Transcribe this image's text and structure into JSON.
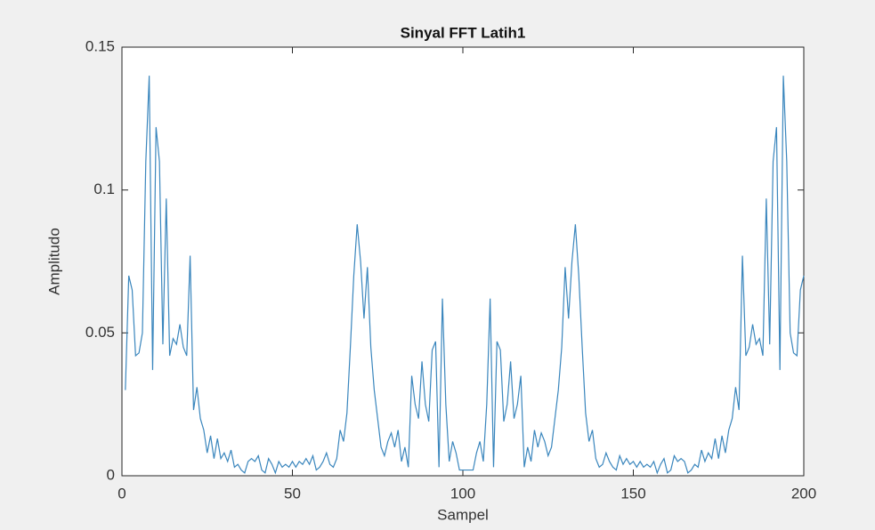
{
  "chart_data": {
    "type": "line",
    "title": "Sinyal FFT Latih1",
    "xlabel": "Sampel",
    "ylabel": "Amplitudo",
    "x": [
      1,
      2,
      3,
      4,
      5,
      6,
      7,
      8,
      9,
      10,
      11,
      12,
      13,
      14,
      15,
      16,
      17,
      18,
      19,
      20,
      21,
      22,
      23,
      24,
      25,
      26,
      27,
      28,
      29,
      30,
      31,
      32,
      33,
      34,
      35,
      36,
      37,
      38,
      39,
      40,
      41,
      42,
      43,
      44,
      45,
      46,
      47,
      48,
      49,
      50,
      51,
      52,
      53,
      54,
      55,
      56,
      57,
      58,
      59,
      60,
      61,
      62,
      63,
      64,
      65,
      66,
      67,
      68,
      69,
      70,
      71,
      72,
      73,
      74,
      75,
      76,
      77,
      78,
      79,
      80,
      81,
      82,
      83,
      84,
      85,
      86,
      87,
      88,
      89,
      90,
      91,
      92,
      93,
      94,
      95,
      96,
      97,
      98,
      99,
      100,
      101,
      102,
      103,
      104,
      105,
      106,
      107,
      108,
      109,
      110,
      111,
      112,
      113,
      114,
      115,
      116,
      117,
      118,
      119,
      120,
      121,
      122,
      123,
      124,
      125,
      126,
      127,
      128,
      129,
      130,
      131,
      132,
      133,
      134,
      135,
      136,
      137,
      138,
      139,
      140,
      141,
      142,
      143,
      144,
      145,
      146,
      147,
      148,
      149,
      150,
      151,
      152,
      153,
      154,
      155,
      156,
      157,
      158,
      159,
      160,
      161,
      162,
      163,
      164,
      165,
      166,
      167,
      168,
      169,
      170,
      171,
      172,
      173,
      174,
      175,
      176,
      177,
      178,
      179,
      180,
      181,
      182,
      183,
      184,
      185,
      186,
      187,
      188,
      189,
      190,
      191,
      192,
      193,
      194,
      195,
      196,
      197,
      198,
      199,
      200
    ],
    "series": [
      {
        "color": "#3a86bd",
        "values": [
          0.03,
          0.07,
          0.065,
          0.042,
          0.043,
          0.05,
          0.11,
          0.14,
          0.037,
          0.122,
          0.11,
          0.046,
          0.097,
          0.042,
          0.048,
          0.046,
          0.053,
          0.045,
          0.042,
          0.077,
          0.023,
          0.031,
          0.02,
          0.016,
          0.008,
          0.014,
          0.006,
          0.013,
          0.006,
          0.008,
          0.005,
          0.009,
          0.003,
          0.004,
          0.002,
          0.001,
          0.005,
          0.006,
          0.005,
          0.007,
          0.002,
          0.001,
          0.006,
          0.004,
          0.001,
          0.005,
          0.003,
          0.004,
          0.003,
          0.005,
          0.003,
          0.005,
          0.004,
          0.006,
          0.004,
          0.007,
          0.002,
          0.003,
          0.005,
          0.008,
          0.004,
          0.003,
          0.006,
          0.016,
          0.012,
          0.022,
          0.045,
          0.07,
          0.088,
          0.075,
          0.055,
          0.073,
          0.045,
          0.03,
          0.02,
          0.01,
          0.007,
          0.012,
          0.015,
          0.01,
          0.016,
          0.005,
          0.01,
          0.003,
          0.035,
          0.025,
          0.02,
          0.04,
          0.025,
          0.019,
          0.044,
          0.047,
          0.003,
          0.062,
          0.025,
          0.005,
          0.012,
          0.008,
          0.002,
          0.002,
          0.002,
          0.002,
          0.002,
          0.008,
          0.012,
          0.005,
          0.025,
          0.062,
          0.003,
          0.047,
          0.044,
          0.019,
          0.025,
          0.04,
          0.02,
          0.025,
          0.035,
          0.003,
          0.01,
          0.005,
          0.016,
          0.01,
          0.015,
          0.012,
          0.007,
          0.01,
          0.02,
          0.03,
          0.045,
          0.073,
          0.055,
          0.075,
          0.088,
          0.07,
          0.045,
          0.022,
          0.012,
          0.016,
          0.006,
          0.003,
          0.004,
          0.008,
          0.005,
          0.003,
          0.002,
          0.007,
          0.004,
          0.006,
          0.004,
          0.005,
          0.003,
          0.005,
          0.003,
          0.004,
          0.003,
          0.005,
          0.001,
          0.004,
          0.006,
          0.001,
          0.002,
          0.007,
          0.005,
          0.006,
          0.005,
          0.001,
          0.002,
          0.004,
          0.003,
          0.009,
          0.005,
          0.008,
          0.006,
          0.013,
          0.006,
          0.014,
          0.008,
          0.016,
          0.02,
          0.031,
          0.023,
          0.077,
          0.042,
          0.045,
          0.053,
          0.046,
          0.048,
          0.042,
          0.097,
          0.046,
          0.11,
          0.122,
          0.037,
          0.14,
          0.11,
          0.05,
          0.043,
          0.042,
          0.065,
          0.07
        ]
      }
    ],
    "xlim": [
      0,
      200
    ],
    "xticks": [
      0,
      50,
      100,
      150,
      200
    ],
    "ylim": [
      0,
      0.15
    ],
    "yticks": [
      0,
      0.05,
      0.1,
      0.15
    ],
    "grid": false
  }
}
